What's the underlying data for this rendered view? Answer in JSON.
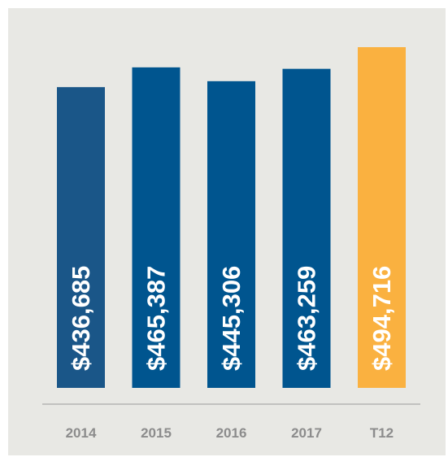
{
  "chart_data": {
    "type": "bar",
    "categories": [
      "2014",
      "2015",
      "2016",
      "2017",
      "T12"
    ],
    "values": [
      436685,
      465387,
      445306,
      463259,
      494716
    ],
    "value_labels": [
      "$436,685",
      "$465,387",
      "$445,306",
      "$463,259",
      "$494,716"
    ],
    "colors": [
      "#1a5688",
      "#00558f",
      "#00558f",
      "#00558f",
      "#fab140"
    ]
  }
}
